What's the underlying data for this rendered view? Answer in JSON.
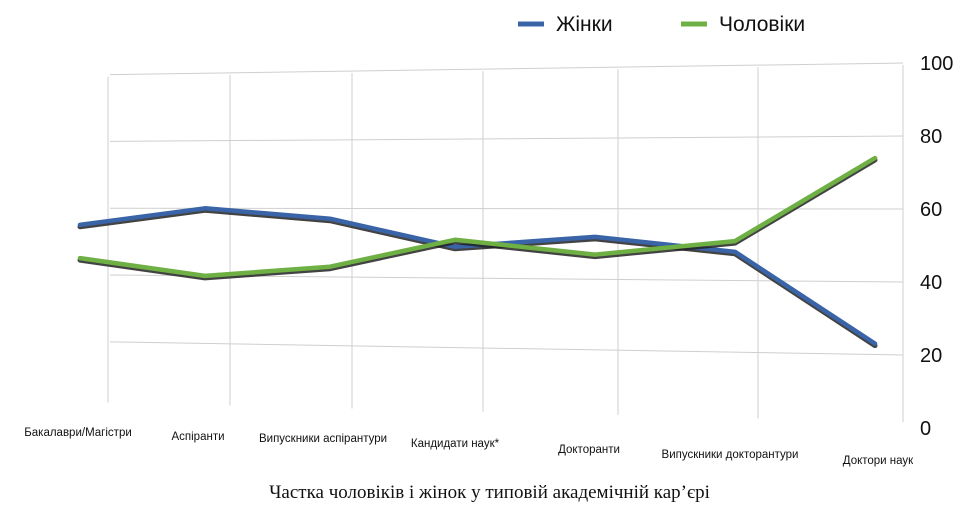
{
  "chart_data": {
    "type": "line",
    "title": "Частка чоловіків і жінок у типовій академічній кар’єрі",
    "categories": [
      "Бакалаври/Магістри",
      "Аспіранти",
      "Випускники аспірантури",
      "Кандидати наук*",
      "Докторанти",
      "Випускники докторантури",
      "Доктори наук"
    ],
    "series": [
      {
        "name": "Жінки",
        "color": "#3a64a8",
        "values": [
          55,
          60,
          57,
          49,
          52,
          48,
          23
        ]
      },
      {
        "name": "Чоловіки",
        "color": "#6eb043",
        "values": [
          45,
          40,
          43,
          51,
          47,
          51,
          74
        ]
      }
    ],
    "yticks": [
      0,
      20,
      40,
      60,
      80,
      100
    ],
    "ylim": [
      0,
      100
    ],
    "grid": true,
    "legend_position": "top-center",
    "y_axis_side": "right"
  }
}
